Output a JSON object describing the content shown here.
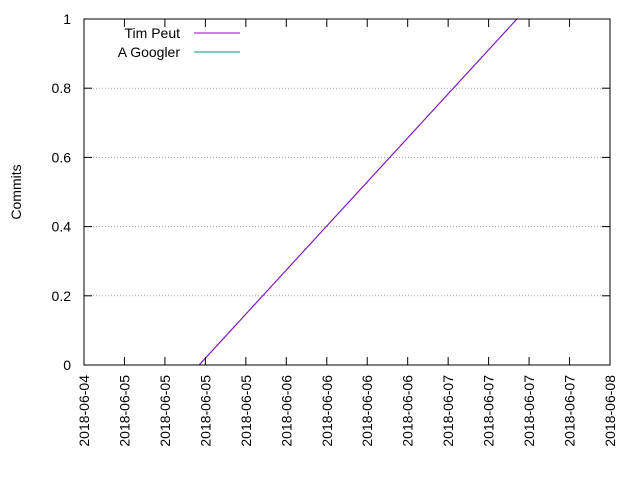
{
  "chart_data": {
    "type": "line",
    "title": "",
    "xlabel": "",
    "ylabel": "Commits",
    "ylim": [
      0,
      1
    ],
    "yticks": [
      "0",
      "0.2",
      "0.4",
      "0.6",
      "0.8",
      "1"
    ],
    "xticks": [
      "2018-06-04",
      "2018-06-05",
      "2018-06-05",
      "2018-06-05",
      "2018-06-05",
      "2018-06-06",
      "2018-06-06",
      "2018-06-06",
      "2018-06-06",
      "2018-06-07",
      "2018-06-07",
      "2018-06-07",
      "2018-06-07",
      "2018-06-08"
    ],
    "grid": "horizontal dotted",
    "legend_position": "top-left",
    "series": [
      {
        "name": "Tim Peut",
        "color": "#9400d3",
        "points": [
          {
            "x": "2018-06-04 21:00",
            "y": 0
          },
          {
            "x": "2018-06-07 07:00",
            "y": 1
          }
        ]
      },
      {
        "name": "A Googler",
        "color": "#009e73",
        "points": [
          {
            "x": "2018-06-04 21:00",
            "y": 0
          },
          {
            "x": "2018-06-07 07:00",
            "y": 1
          }
        ]
      }
    ]
  }
}
